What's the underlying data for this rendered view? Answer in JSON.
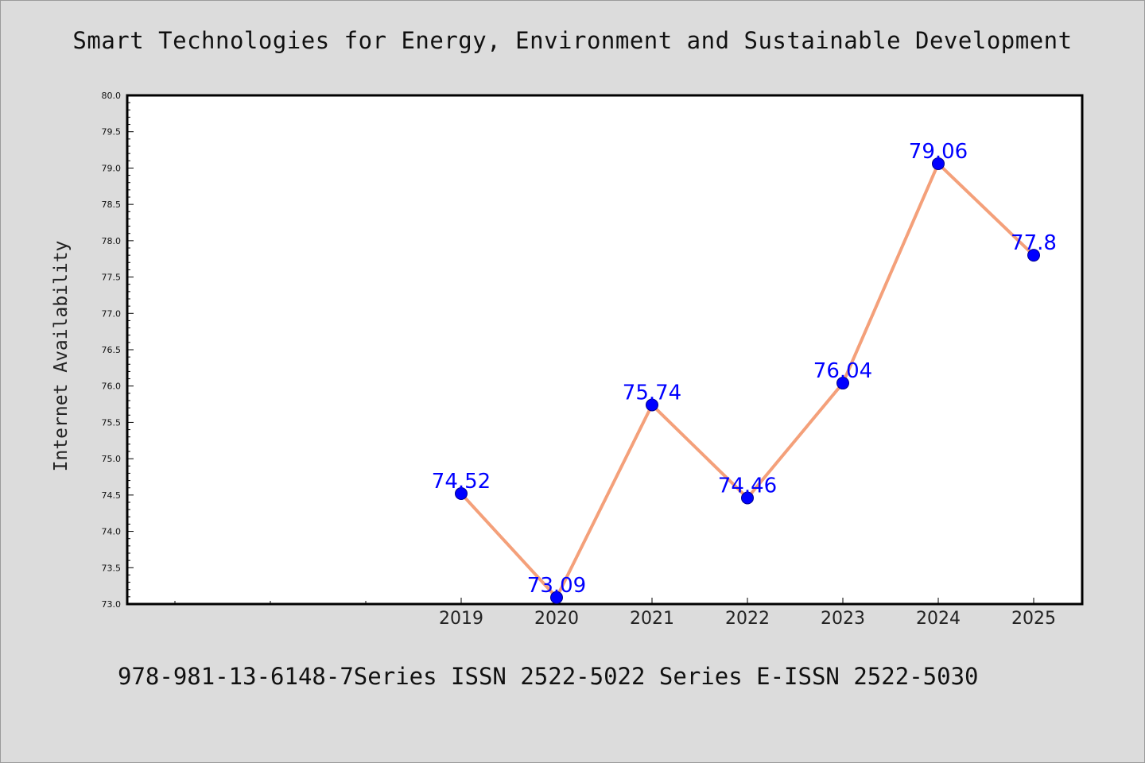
{
  "title": "Smart Technologies for Energy, Environment and Sustainable Development",
  "footer": "978-981-13-6148-7Series ISSN 2522-5022 Series E-ISSN 2522-5030",
  "chart_data": {
    "type": "line",
    "title": "Smart Technologies for Energy, Environment and Sustainable Development",
    "xlabel": "",
    "ylabel": "Internet Availability",
    "categories": [
      "2019",
      "2020",
      "2021",
      "2022",
      "2023",
      "2024",
      "2025"
    ],
    "series": [
      {
        "values": [
          74.52,
          73.09,
          75.74,
          74.46,
          76.04,
          79.06,
          77.8
        ]
      }
    ],
    "data_labels": [
      "74.52",
      "73.09",
      "75.74",
      "74.46",
      "76.04",
      "79.06",
      "77.8"
    ],
    "ylim": [
      73.0,
      80.0
    ],
    "yticks": [
      "73.0",
      "73.5",
      "74.0",
      "74.5",
      "75.0",
      "75.5",
      "76.0",
      "76.5",
      "77.0",
      "77.5",
      "78.0",
      "78.5",
      "79.0",
      "79.5",
      "80.0"
    ],
    "grid": false,
    "line_color": "#f4a07a",
    "marker_color": "#0000ff",
    "label_color": "#0000ff"
  }
}
